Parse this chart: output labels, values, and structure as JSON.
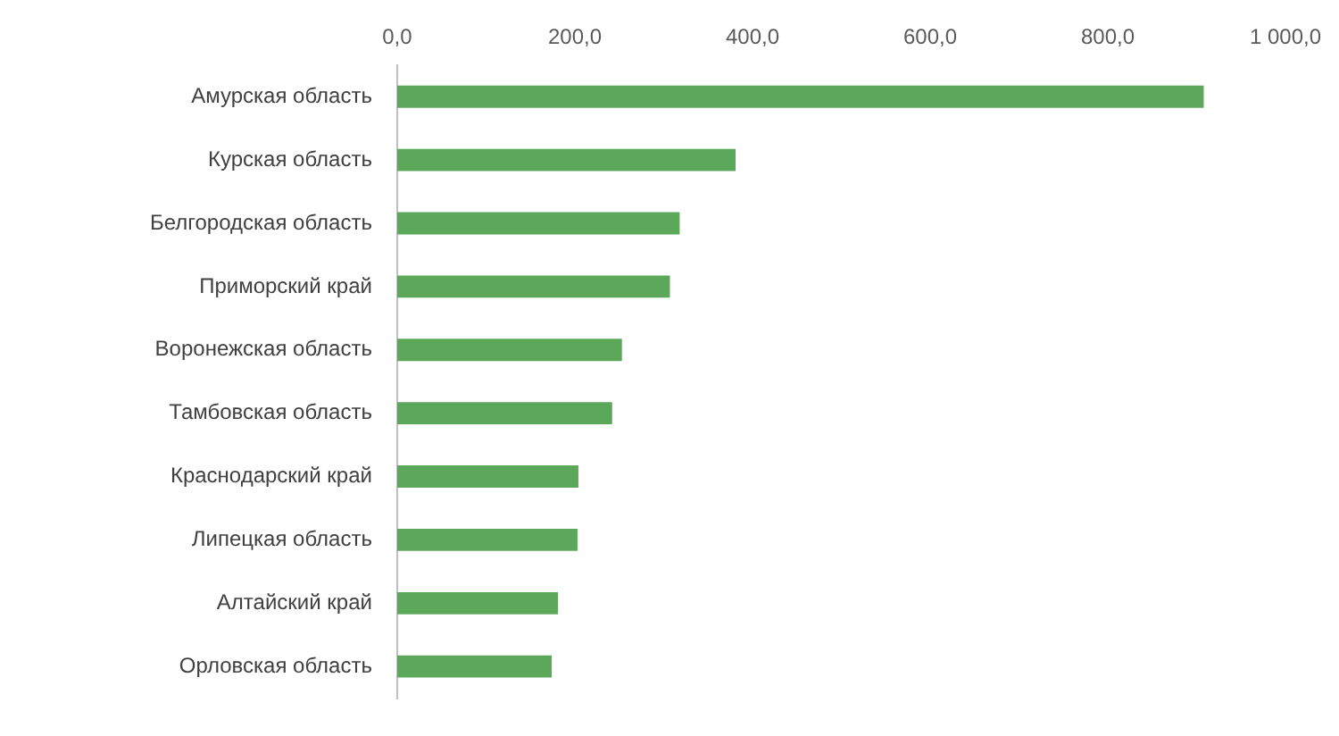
{
  "chart_data": {
    "type": "bar",
    "orientation": "horizontal",
    "categories": [
      "Амурская область",
      "Курская область",
      "Белгородская область",
      "Приморский край",
      "Воронежская область",
      "Тамбовская область",
      "Краснодарский край",
      "Липецкая область",
      "Алтайский край",
      "Орловская область"
    ],
    "values": [
      908,
      381,
      318,
      307,
      253,
      242,
      204,
      203,
      181,
      174
    ],
    "color": "#5ba85a",
    "xlim": [
      0,
      1000
    ],
    "xticks": [
      {
        "value": 0,
        "label": "0,0"
      },
      {
        "value": 200,
        "label": "200,0"
      },
      {
        "value": 400,
        "label": "400,0"
      },
      {
        "value": 600,
        "label": "600,0"
      },
      {
        "value": 800,
        "label": "800,0"
      },
      {
        "value": 1000,
        "label": "1 000,0"
      }
    ],
    "grid": false,
    "legend": false
  }
}
